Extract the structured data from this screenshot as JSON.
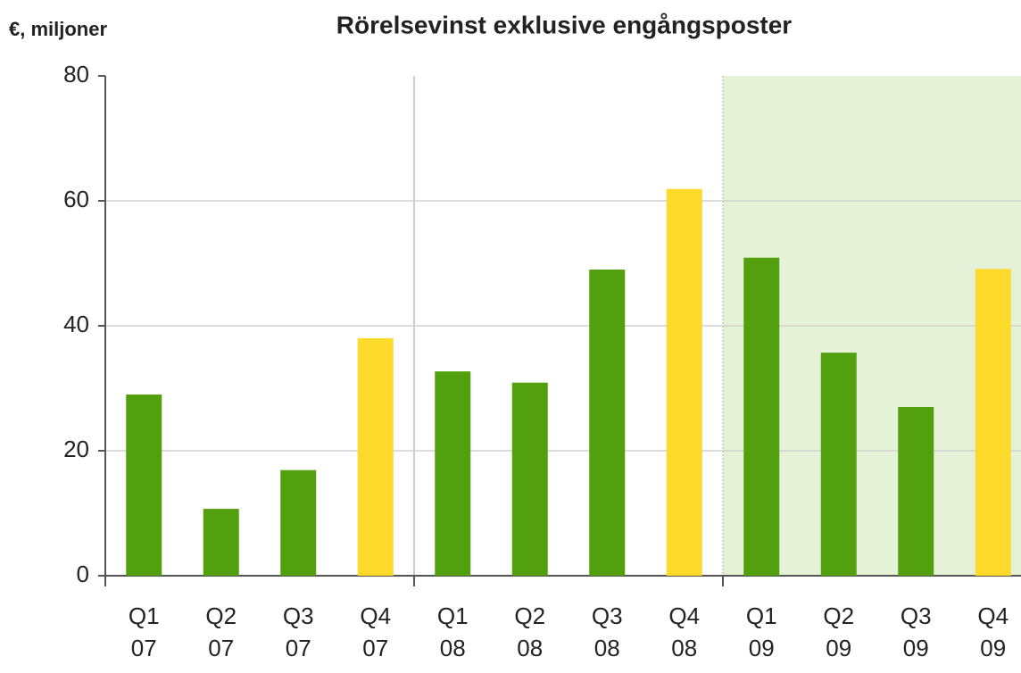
{
  "chart_data": {
    "type": "bar",
    "title": "Rörelsevinst exklusive engångsposter",
    "y_label": "€, miljoner",
    "categories": [
      "Q1 07",
      "Q2 07",
      "Q3 07",
      "Q4 07",
      "Q1 08",
      "Q2 08",
      "Q3 08",
      "Q4 08",
      "Q1 09",
      "Q2 09",
      "Q3 09",
      "Q4 09"
    ],
    "values": [
      29,
      10.7,
      16.9,
      38,
      32.7,
      30.9,
      49,
      61.9,
      50.9,
      35.7,
      27,
      49.1
    ],
    "colors": [
      "#52a00e",
      "#52a00e",
      "#52a00e",
      "#fdd92a",
      "#52a00e",
      "#52a00e",
      "#52a00e",
      "#fdd92a",
      "#52a00e",
      "#52a00e",
      "#52a00e",
      "#fdd92a"
    ],
    "ylim": [
      0,
      80
    ],
    "yticks": [
      0,
      20,
      40,
      60,
      80
    ],
    "grid": true
  }
}
